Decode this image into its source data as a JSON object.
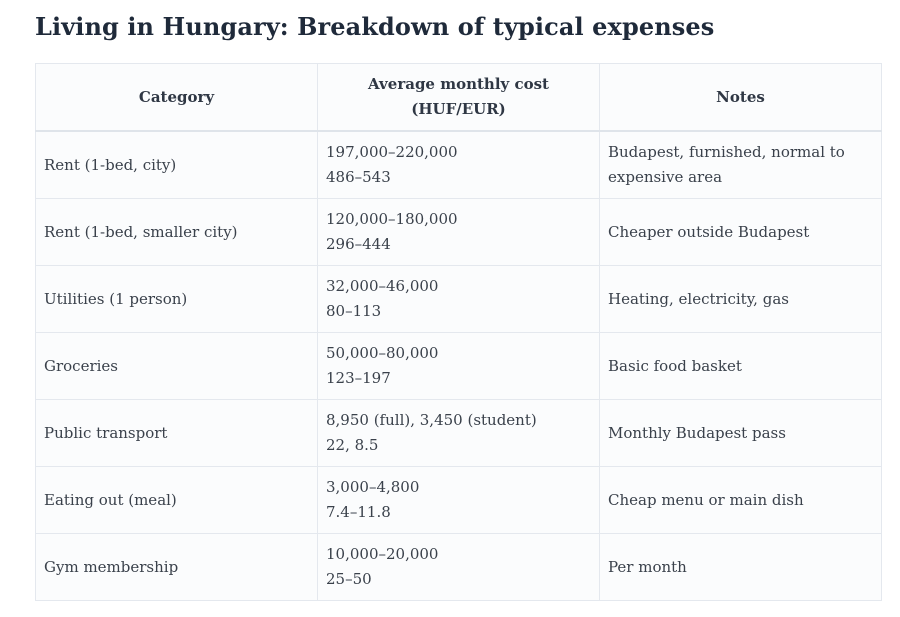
{
  "title": "Living in Hungary: Breakdown of typical expenses",
  "table": {
    "headers": [
      "Category",
      "Average monthly cost",
      "(HUF/EUR)",
      "Notes"
    ],
    "rows": [
      {
        "category": "Rent (1-bed, city)",
        "huf": "197,000–220,000",
        "eur": "486–543",
        "notes1": "Budapest, furnished, normal to",
        "notes2": "expensive area"
      },
      {
        "category": "Rent (1-bed, smaller city)",
        "huf": "120,000–180,000",
        "eur": "296–444",
        "notes1": "Cheaper outside Budapest",
        "notes2": ""
      },
      {
        "category": "Utilities (1 person)",
        "huf": "32,000–46,000",
        "eur": "80–113",
        "notes1": "Heating, electricity, gas",
        "notes2": ""
      },
      {
        "category": "Groceries",
        "huf": "50,000–80,000",
        "eur": "123–197",
        "notes1": "Basic food basket",
        "notes2": ""
      },
      {
        "category": "Public transport",
        "huf": "8,950 (full), 3,450 (student)",
        "eur": "22, 8.5",
        "notes1": "Monthly Budapest pass",
        "notes2": ""
      },
      {
        "category": "Eating out (meal)",
        "huf": "3,000–4,800",
        "eur": "7.4–11.8",
        "notes1": "Cheap menu or main dish",
        "notes2": ""
      },
      {
        "category": "Gym membership",
        "huf": "10,000–20,000",
        "eur": "25–50",
        "notes1": "Per month",
        "notes2": ""
      }
    ]
  }
}
